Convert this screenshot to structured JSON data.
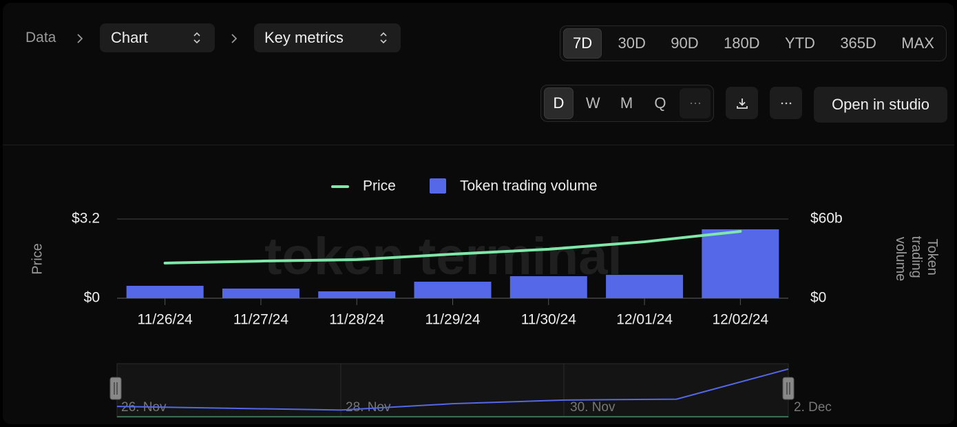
{
  "breadcrumb": {
    "root": "Data",
    "items": [
      "Chart",
      "Key metrics"
    ]
  },
  "ranges": {
    "options": [
      "7D",
      "30D",
      "90D",
      "180D",
      "YTD",
      "365D",
      "MAX"
    ],
    "selected": 0
  },
  "granularity": {
    "options": [
      "D",
      "W",
      "M",
      "Q"
    ],
    "selected": 0
  },
  "actions": {
    "open_studio": "Open in studio"
  },
  "chart_data": {
    "type": "bar_line",
    "watermark": "token terminal_",
    "categories": [
      "11/26/24",
      "11/27/24",
      "11/28/24",
      "11/29/24",
      "11/30/24",
      "12/01/24",
      "12/02/24"
    ],
    "series": [
      {
        "name": "Price",
        "color": "#7ee8a8",
        "type": "line",
        "axis": "y",
        "values": [
          1.42,
          1.5,
          1.56,
          1.78,
          1.98,
          2.28,
          2.7
        ]
      },
      {
        "name": "Token trading volume",
        "color": "#5468e8",
        "type": "bar",
        "axis": "y2",
        "values": [
          9400000000,
          7300000000,
          5200000000,
          12500000000,
          16700000000,
          17700000000,
          52200000000
        ]
      }
    ],
    "ylabel": "Price",
    "y2label": "Token trading volume",
    "ylim": [
      0,
      3.2
    ],
    "yticks": [
      {
        "value": 0,
        "label": "$0"
      },
      {
        "value": 3.2,
        "label": "$3.2"
      }
    ],
    "y2lim": [
      0,
      60000000000
    ],
    "y2ticks": [
      {
        "value": 0,
        "label": "$0"
      },
      {
        "value": 60000000000,
        "label": "$60b"
      }
    ],
    "grid": true,
    "navigator_labels": [
      "26. Nov",
      "28. Nov",
      "30. Nov",
      "2. Dec"
    ]
  }
}
